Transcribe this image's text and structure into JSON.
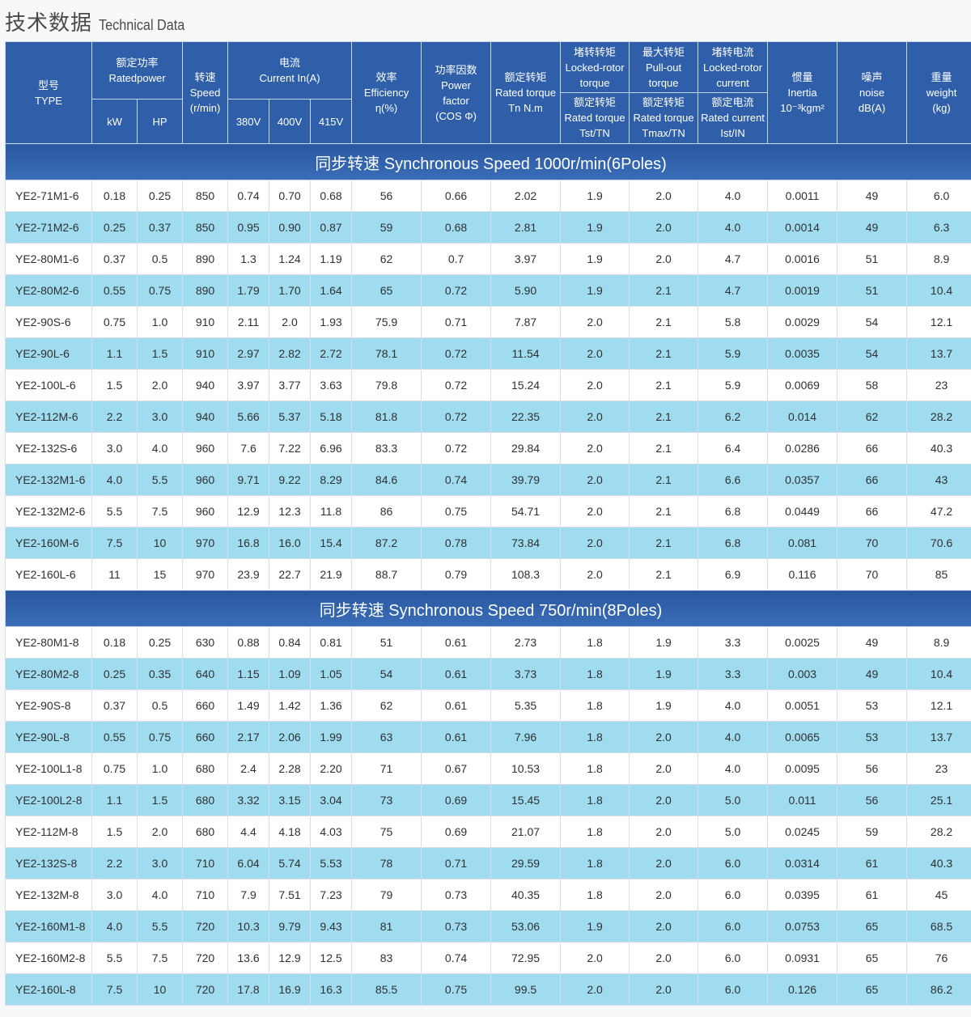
{
  "page": {
    "title_cn": "技术数据",
    "title_en": "Technical Data"
  },
  "header": {
    "type": {
      "cn": "型号",
      "en": "TYPE"
    },
    "power": {
      "cn": "额定功率",
      "en": "Ratedpower",
      "kw": "kW",
      "hp": "HP"
    },
    "speed": {
      "cn": "转速",
      "en": "Speed",
      "unit": "(r/min)"
    },
    "current": {
      "cn": "电流",
      "en": "Current In(A)",
      "v380": "380V",
      "v400": "400V",
      "v415": "415V"
    },
    "efficiency": {
      "cn": "效率",
      "en": "Efficiency",
      "unit": "η(%)"
    },
    "power_factor": {
      "cn": "功率因数",
      "en1": "Power",
      "en2": "factor",
      "unit": "(COS Φ)"
    },
    "rated_torque": {
      "cn": "额定转矩",
      "en": "Rated torque",
      "unit": "Tn N.m"
    },
    "locked_rotor_torque": {
      "cn_top": "堵转转矩",
      "en_top1": "Locked-rotor",
      "en_top2": "torque",
      "cn_bot": "额定转矩",
      "en_bot1": "Rated torque",
      "en_bot2": "Tst/TN"
    },
    "pull_out_torque": {
      "cn_top": "最大转矩",
      "en_top1": "Pull-out",
      "en_top2": "torque",
      "cn_bot": "额定转矩",
      "en_bot1": "Rated torque",
      "en_bot2": "Tmax/TN"
    },
    "locked_rotor_current": {
      "cn_top": "堵转电流",
      "en_top1": "Locked-rotor",
      "en_top2": "current",
      "cn_bot": "额定电流",
      "en_bot1": "Rated current",
      "en_bot2": "Ist/IN"
    },
    "inertia": {
      "cn": "惯量",
      "en": "Inertia",
      "unit": "10⁻³kgm²"
    },
    "noise": {
      "cn": "噪声",
      "en": "noise",
      "unit": "dB(A)"
    },
    "weight": {
      "cn": "重量",
      "en": "weight",
      "unit": "(kg)"
    }
  },
  "sections": [
    {
      "title": "同步转速 Synchronous Speed 1000r/min(6Poles)",
      "rows": [
        [
          "YE2-71M1-6",
          "0.18",
          "0.25",
          "850",
          "0.74",
          "0.70",
          "0.68",
          "56",
          "0.66",
          "2.02",
          "1.9",
          "2.0",
          "4.0",
          "0.0011",
          "49",
          "6.0"
        ],
        [
          "YE2-71M2-6",
          "0.25",
          "0.37",
          "850",
          "0.95",
          "0.90",
          "0.87",
          "59",
          "0.68",
          "2.81",
          "1.9",
          "2.0",
          "4.0",
          "0.0014",
          "49",
          "6.3"
        ],
        [
          "YE2-80M1-6",
          "0.37",
          "0.5",
          "890",
          "1.3",
          "1.24",
          "1.19",
          "62",
          "0.7",
          "3.97",
          "1.9",
          "2.0",
          "4.7",
          "0.0016",
          "51",
          "8.9"
        ],
        [
          "YE2-80M2-6",
          "0.55",
          "0.75",
          "890",
          "1.79",
          "1.70",
          "1.64",
          "65",
          "0.72",
          "5.90",
          "1.9",
          "2.1",
          "4.7",
          "0.0019",
          "51",
          "10.4"
        ],
        [
          "YE2-90S-6",
          "0.75",
          "1.0",
          "910",
          "2.11",
          "2.0",
          "1.93",
          "75.9",
          "0.71",
          "7.87",
          "2.0",
          "2.1",
          "5.8",
          "0.0029",
          "54",
          "12.1"
        ],
        [
          "YE2-90L-6",
          "1.1",
          "1.5",
          "910",
          "2.97",
          "2.82",
          "2.72",
          "78.1",
          "0.72",
          "11.54",
          "2.0",
          "2.1",
          "5.9",
          "0.0035",
          "54",
          "13.7"
        ],
        [
          "YE2-100L-6",
          "1.5",
          "2.0",
          "940",
          "3.97",
          "3.77",
          "3.63",
          "79.8",
          "0.72",
          "15.24",
          "2.0",
          "2.1",
          "5.9",
          "0.0069",
          "58",
          "23"
        ],
        [
          "YE2-112M-6",
          "2.2",
          "3.0",
          "940",
          "5.66",
          "5.37",
          "5.18",
          "81.8",
          "0.72",
          "22.35",
          "2.0",
          "2.1",
          "6.2",
          "0.014",
          "62",
          "28.2"
        ],
        [
          "YE2-132S-6",
          "3.0",
          "4.0",
          "960",
          "7.6",
          "7.22",
          "6.96",
          "83.3",
          "0.72",
          "29.84",
          "2.0",
          "2.1",
          "6.4",
          "0.0286",
          "66",
          "40.3"
        ],
        [
          "YE2-132M1-6",
          "4.0",
          "5.5",
          "960",
          "9.71",
          "9.22",
          "8.29",
          "84.6",
          "0.74",
          "39.79",
          "2.0",
          "2.1",
          "6.6",
          "0.0357",
          "66",
          "43"
        ],
        [
          "YE2-132M2-6",
          "5.5",
          "7.5",
          "960",
          "12.9",
          "12.3",
          "11.8",
          "86",
          "0.75",
          "54.71",
          "2.0",
          "2.1",
          "6.8",
          "0.0449",
          "66",
          "47.2"
        ],
        [
          "YE2-160M-6",
          "7.5",
          "10",
          "970",
          "16.8",
          "16.0",
          "15.4",
          "87.2",
          "0.78",
          "73.84",
          "2.0",
          "2.1",
          "6.8",
          "0.081",
          "70",
          "70.6"
        ],
        [
          "YE2-160L-6",
          "11",
          "15",
          "970",
          "23.9",
          "22.7",
          "21.9",
          "88.7",
          "0.79",
          "108.3",
          "2.0",
          "2.1",
          "6.9",
          "0.116",
          "70",
          "85"
        ]
      ]
    },
    {
      "title": "同步转速 Synchronous Speed 750r/min(8Poles)",
      "rows": [
        [
          "YE2-80M1-8",
          "0.18",
          "0.25",
          "630",
          "0.88",
          "0.84",
          "0.81",
          "51",
          "0.61",
          "2.73",
          "1.8",
          "1.9",
          "3.3",
          "0.0025",
          "49",
          "8.9"
        ],
        [
          "YE2-80M2-8",
          "0.25",
          "0.35",
          "640",
          "1.15",
          "1.09",
          "1.05",
          "54",
          "0.61",
          "3.73",
          "1.8",
          "1.9",
          "3.3",
          "0.003",
          "49",
          "10.4"
        ],
        [
          "YE2-90S-8",
          "0.37",
          "0.5",
          "660",
          "1.49",
          "1.42",
          "1.36",
          "62",
          "0.61",
          "5.35",
          "1.8",
          "1.9",
          "4.0",
          "0.0051",
          "53",
          "12.1"
        ],
        [
          "YE2-90L-8",
          "0.55",
          "0.75",
          "660",
          "2.17",
          "2.06",
          "1.99",
          "63",
          "0.61",
          "7.96",
          "1.8",
          "2.0",
          "4.0",
          "0.0065",
          "53",
          "13.7"
        ],
        [
          "YE2-100L1-8",
          "0.75",
          "1.0",
          "680",
          "2.4",
          "2.28",
          "2.20",
          "71",
          "0.67",
          "10.53",
          "1.8",
          "2.0",
          "4.0",
          "0.0095",
          "56",
          "23"
        ],
        [
          "YE2-100L2-8",
          "1.1",
          "1.5",
          "680",
          "3.32",
          "3.15",
          "3.04",
          "73",
          "0.69",
          "15.45",
          "1.8",
          "2.0",
          "5.0",
          "0.011",
          "56",
          "25.1"
        ],
        [
          "YE2-112M-8",
          "1.5",
          "2.0",
          "680",
          "4.4",
          "4.18",
          "4.03",
          "75",
          "0.69",
          "21.07",
          "1.8",
          "2.0",
          "5.0",
          "0.0245",
          "59",
          "28.2"
        ],
        [
          "YE2-132S-8",
          "2.2",
          "3.0",
          "710",
          "6.04",
          "5.74",
          "5.53",
          "78",
          "0.71",
          "29.59",
          "1.8",
          "2.0",
          "6.0",
          "0.0314",
          "61",
          "40.3"
        ],
        [
          "YE2-132M-8",
          "3.0",
          "4.0",
          "710",
          "7.9",
          "7.51",
          "7.23",
          "79",
          "0.73",
          "40.35",
          "1.8",
          "2.0",
          "6.0",
          "0.0395",
          "61",
          "45"
        ],
        [
          "YE2-160M1-8",
          "4.0",
          "5.5",
          "720",
          "10.3",
          "9.79",
          "9.43",
          "81",
          "0.73",
          "53.06",
          "1.9",
          "2.0",
          "6.0",
          "0.0753",
          "65",
          "68.5"
        ],
        [
          "YE2-160M2-8",
          "5.5",
          "7.5",
          "720",
          "13.6",
          "12.9",
          "12.5",
          "83",
          "0.74",
          "72.95",
          "2.0",
          "2.0",
          "6.0",
          "0.0931",
          "65",
          "76"
        ],
        [
          "YE2-160L-8",
          "7.5",
          "10",
          "720",
          "17.8",
          "16.9",
          "16.3",
          "85.5",
          "0.75",
          "99.5",
          "2.0",
          "2.0",
          "6.0",
          "0.126",
          "65",
          "86.2"
        ]
      ]
    }
  ]
}
